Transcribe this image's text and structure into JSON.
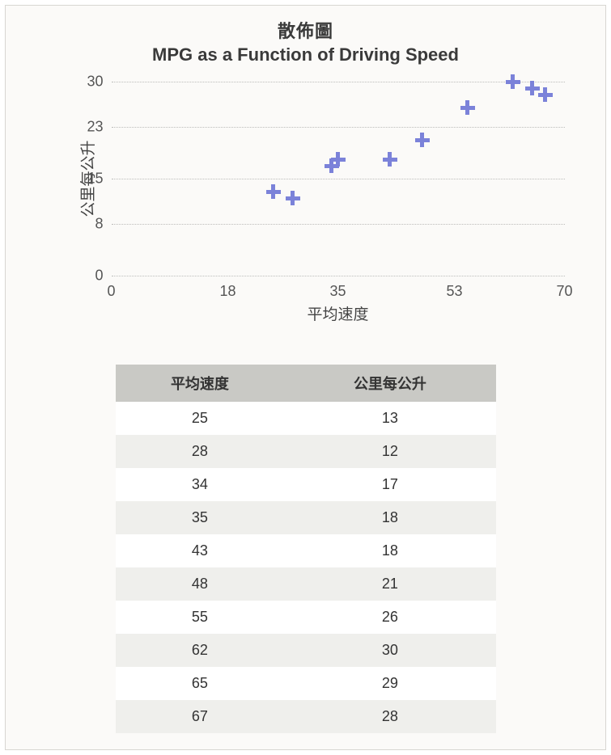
{
  "chart": {
    "type": "scatter",
    "title_line1": "散佈圖",
    "title_line2": "MPG as a Function of Driving Speed",
    "title_fontsize": 22,
    "title_color": "#3a3a3a",
    "xlabel": "平均速度",
    "ylabel": "公里每公升",
    "label_fontsize": 19,
    "label_color": "#444",
    "tick_fontsize": 18,
    "tick_color": "#555",
    "background_color": "#fbfaf8",
    "frame_border_color": "#d8d6d2",
    "grid_color": "#bcbcba",
    "grid_style": "dotted",
    "marker_color": "#7b82d9",
    "marker_style": "plus",
    "marker_size": 18,
    "marker_thickness": 5,
    "xlim": [
      0,
      70
    ],
    "x_ticks": [
      0,
      18,
      35,
      53,
      70
    ],
    "ylim": [
      0,
      30
    ],
    "y_ticks": [
      0,
      8,
      15,
      23,
      30
    ],
    "series": [
      {
        "x": 25,
        "y": 13
      },
      {
        "x": 28,
        "y": 12
      },
      {
        "x": 34,
        "y": 17
      },
      {
        "x": 35,
        "y": 18
      },
      {
        "x": 43,
        "y": 18
      },
      {
        "x": 48,
        "y": 21
      },
      {
        "x": 55,
        "y": 26
      },
      {
        "x": 62,
        "y": 30
      },
      {
        "x": 65,
        "y": 29
      },
      {
        "x": 67,
        "y": 28
      }
    ]
  },
  "table": {
    "columns": [
      "平均速度",
      "公里每公升"
    ],
    "header_bg": "#c9c9c5",
    "row_bg_odd": "#ffffff",
    "row_bg_even": "#efefec",
    "text_color": "#333",
    "fontsize": 18,
    "rows": [
      [
        25,
        13
      ],
      [
        28,
        12
      ],
      [
        34,
        17
      ],
      [
        35,
        18
      ],
      [
        43,
        18
      ],
      [
        48,
        21
      ],
      [
        55,
        26
      ],
      [
        62,
        30
      ],
      [
        65,
        29
      ],
      [
        67,
        28
      ]
    ]
  }
}
